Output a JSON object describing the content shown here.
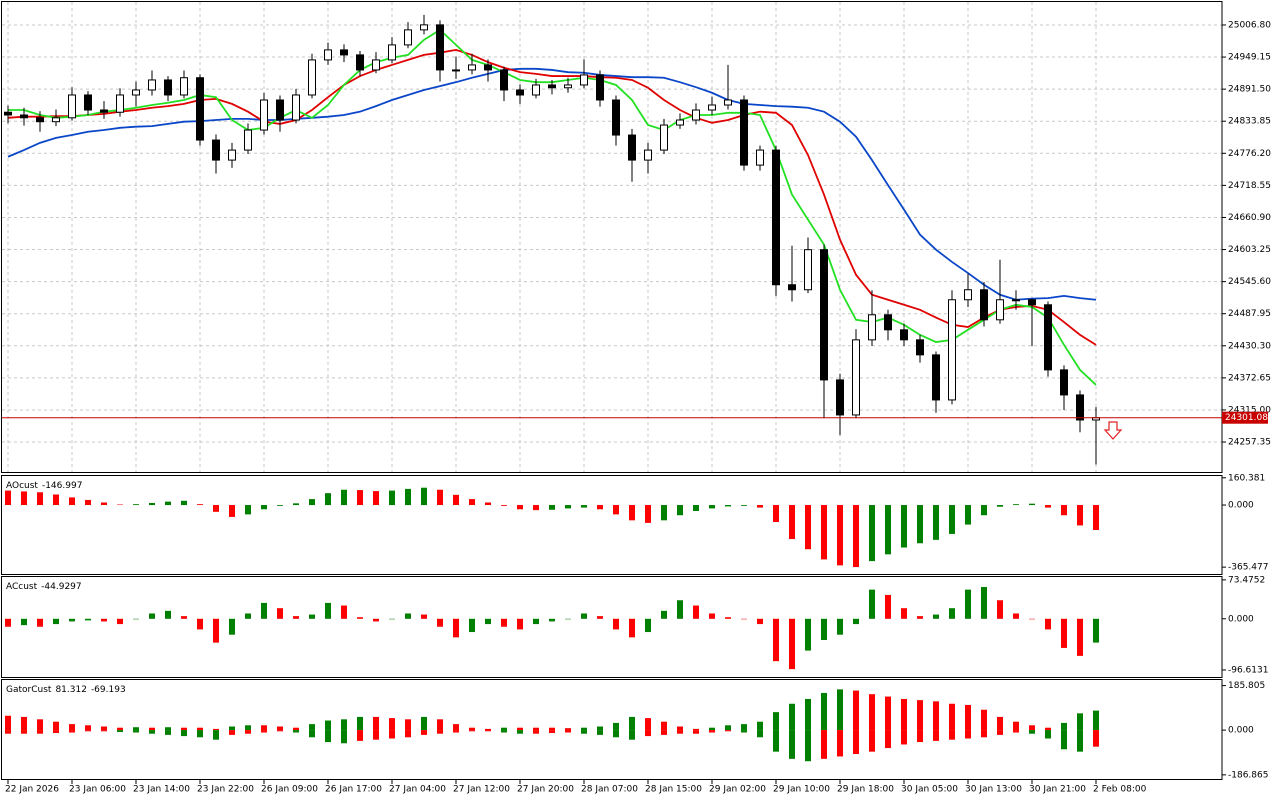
{
  "chart_data": [
    {
      "type": "candlestick",
      "categories": [
        "22 Jan 2026",
        null,
        null,
        null,
        "23 Jan 06:00",
        null,
        null,
        null,
        "23 Jan 14:00",
        null,
        null,
        null,
        "23 Jan 22:00",
        null,
        null,
        null,
        "26 Jan 09:00",
        null,
        null,
        null,
        "26 Jan 17:00",
        null,
        null,
        null,
        "27 Jan 04:00",
        null,
        null,
        null,
        "27 Jan 12:00",
        null,
        null,
        null,
        "27 Jan 20:00",
        null,
        null,
        null,
        "28 Jan 07:00",
        null,
        null,
        null,
        "28 Jan 15:00",
        null,
        null,
        null,
        "29 Jan 02:00",
        null,
        null,
        null,
        "29 Jan 10:00",
        null,
        null,
        null,
        "29 Jan 18:00",
        null,
        null,
        null,
        "30 Jan 05:00",
        null,
        null,
        null,
        "30 Jan 13:00",
        null,
        null,
        null,
        "30 Jan 21:00",
        null,
        null,
        null,
        "2 Feb 08:00"
      ],
      "open": [
        24850,
        24845,
        24840,
        24833,
        24840,
        24881,
        24854,
        24850,
        24881,
        24890,
        24908,
        24881,
        24912,
        24800,
        24764,
        24782,
        24818,
        24872,
        24836,
        24881,
        24944,
        24962,
        24953,
        24926,
        24944,
        24971,
        24998,
        25007,
        24926,
        24926,
        24935,
        24926,
        24890,
        24881,
        24899,
        24894,
        24899,
        24917,
        24872,
        24809,
        24764,
        24782,
        24827,
        24836,
        24854,
        24863,
        24872,
        24755,
        24782,
        24540,
        24531,
        24603,
        24369,
        24306,
        24441,
        24486,
        24459,
        24441,
        24414,
        24333,
        24513,
        24531,
        24477,
        24513,
        24513,
        24504,
        24387,
        24342,
        24297
      ],
      "high": [
        24862,
        24858,
        24852,
        24855,
        24895,
        24888,
        24870,
        24893,
        24905,
        24925,
        24915,
        24925,
        24918,
        24810,
        24795,
        24830,
        24885,
        24880,
        24892,
        24955,
        24975,
        24972,
        24960,
        24958,
        24985,
        25012,
        25025,
        25015,
        24950,
        24955,
        24945,
        24932,
        24900,
        24910,
        24908,
        24912,
        24945,
        24925,
        24880,
        24820,
        24795,
        24838,
        24848,
        24866,
        24878,
        24935,
        24880,
        24790,
        24790,
        24610,
        24625,
        24612,
        24380,
        24460,
        24530,
        24495,
        24470,
        24450,
        24420,
        24530,
        24560,
        24545,
        24585,
        24530,
        24515,
        24510,
        24395,
        24350,
        24320
      ],
      "low": [
        24830,
        24826,
        24815,
        24825,
        24835,
        24845,
        24838,
        24842,
        24860,
        24880,
        24870,
        24875,
        24790,
        24740,
        24750,
        24775,
        24810,
        24815,
        24830,
        24875,
        24935,
        24940,
        24915,
        24920,
        24938,
        24965,
        24990,
        24905,
        24910,
        24918,
        24905,
        24870,
        24865,
        24875,
        24882,
        24885,
        24893,
        24860,
        24790,
        24725,
        24740,
        24775,
        24820,
        24828,
        24845,
        24855,
        24745,
        24745,
        24520,
        24510,
        24525,
        24300,
        24270,
        24300,
        24430,
        24440,
        24430,
        24400,
        24310,
        24325,
        24500,
        24465,
        24470,
        24495,
        24430,
        24375,
        24315,
        24275,
        24217
      ],
      "close": [
        24845,
        24840,
        24833,
        24840,
        24881,
        24854,
        24850,
        24881,
        24890,
        24908,
        24881,
        24912,
        24800,
        24764,
        24782,
        24818,
        24872,
        24836,
        24881,
        24944,
        24962,
        24953,
        24926,
        24944,
        24971,
        24998,
        25007,
        24926,
        24926,
        24935,
        24926,
        24890,
        24881,
        24899,
        24894,
        24899,
        24917,
        24872,
        24809,
        24764,
        24782,
        24827,
        24836,
        24854,
        24863,
        24872,
        24755,
        24782,
        24540,
        24531,
        24603,
        24369,
        24306,
        24441,
        24486,
        24459,
        24441,
        24414,
        24333,
        24513,
        24531,
        24477,
        24513,
        24513,
        24504,
        24387,
        24342,
        24297,
        24301.08
      ],
      "up_color": "#ffffff",
      "down_color": "#000000",
      "lines": [
        {
          "color": "#0a46c8",
          "values": [
            24770,
            24782,
            24795,
            24804,
            24809,
            24815,
            24818,
            24822,
            24824,
            24825,
            24829,
            24833,
            24834,
            24836,
            24838,
            24838,
            24836,
            24836,
            24838,
            24840,
            24842,
            24845,
            24851,
            24861,
            24872,
            24881,
            24890,
            24897,
            24904,
            24912,
            24919,
            24926,
            24928,
            24928,
            24926,
            24922,
            24921,
            24917,
            24915,
            24913,
            24913,
            24912,
            24904,
            24895,
            24885,
            24872,
            24865,
            24863,
            24861,
            24860,
            24858,
            24851,
            24833,
            24806,
            24764,
            24719,
            24675,
            24630,
            24603,
            24581,
            24561,
            24540,
            24522,
            24513,
            24515,
            24516,
            24520,
            24516,
            24513
          ]
        },
        {
          "color": "#e00000",
          "values": [
            24840,
            24842,
            24842,
            24843,
            24843,
            24845,
            24847,
            24851,
            24854,
            24858,
            24861,
            24865,
            24872,
            24874,
            24865,
            24851,
            24833,
            24829,
            24836,
            24854,
            24877,
            24899,
            24915,
            24926,
            24935,
            24944,
            24953,
            24957,
            24962,
            24953,
            24940,
            24930,
            24922,
            24919,
            24915,
            24915,
            24915,
            24913,
            24912,
            24908,
            24894,
            24872,
            24854,
            24840,
            24831,
            24836,
            24845,
            24851,
            24849,
            24827,
            24773,
            24702,
            24621,
            24558,
            24522,
            24513,
            24504,
            24495,
            24481,
            24468,
            24464,
            24481,
            24495,
            24500,
            24502,
            24495,
            24473,
            24450,
            24432
          ]
        },
        {
          "color": "#22e022",
          "values": [
            24854,
            24854,
            24845,
            24840,
            24842,
            24845,
            24851,
            24854,
            24858,
            24863,
            24867,
            24872,
            24881,
            24877,
            24836,
            24818,
            24822,
            24840,
            24854,
            24840,
            24863,
            24899,
            24926,
            24940,
            24948,
            24953,
            24980,
            24998,
            24971,
            24944,
            24935,
            24922,
            24908,
            24904,
            24904,
            24908,
            24912,
            24908,
            24899,
            24872,
            24827,
            24818,
            24836,
            24845,
            24845,
            24849,
            24849,
            24845,
            24782,
            24702,
            24657,
            24612,
            24531,
            24477,
            24473,
            24481,
            24468,
            24450,
            24437,
            24441,
            24459,
            24477,
            24495,
            24504,
            24500,
            24481,
            24432,
            24387,
            24360
          ]
        }
      ],
      "price_line": 24301.08,
      "price_color": "#c80000",
      "ylim": [
        24203.5,
        25042.7
      ],
      "yticks": [
        {
          "value": 25006.8,
          "label": "25006.80"
        },
        24949.15,
        {
          "value": 24891.5,
          "label": "24891.50"
        },
        24833.85,
        {
          "value": 24776.2,
          "label": "24776.20"
        },
        24718.55,
        {
          "value": 24660.9,
          "label": "24660.90"
        },
        24603.25,
        {
          "value": 24545.6,
          "label": "24545.60"
        },
        24487.95,
        {
          "value": 24430.3,
          "label": "24430.30"
        },
        24372.65,
        {
          "value": 24315,
          "label": "24315.00"
        },
        24257.35
      ],
      "grid": true
    },
    {
      "type": "bar",
      "name": "AOcust",
      "values": [
        85,
        80,
        75,
        62,
        45,
        30,
        15,
        3,
        5,
        12,
        20,
        25,
        5,
        -40,
        -70,
        -55,
        -25,
        -5,
        10,
        35,
        70,
        90,
        88,
        82,
        85,
        95,
        102,
        90,
        60,
        35,
        15,
        -5,
        -25,
        -30,
        -28,
        -20,
        -15,
        -25,
        -55,
        -90,
        -105,
        -90,
        -60,
        -35,
        -20,
        -8,
        -5,
        -15,
        -100,
        -200,
        -260,
        -320,
        -355,
        -365,
        -330,
        -290,
        -250,
        -225,
        -205,
        -170,
        -115,
        -60,
        -10,
        5,
        8,
        -15,
        -60,
        -120,
        -146.997
      ],
      "up_color": "#008000",
      "down_color": "#ff0000",
      "ylim": [
        -400,
        165
      ],
      "yticks": [
        160.381,
        {
          "value": 0,
          "label": "0.000"
        },
        -365.477
      ]
    },
    {
      "type": "bar",
      "name": "ACcust",
      "values": [
        -15,
        -12,
        -15,
        -10,
        -5,
        -3,
        -5,
        -10,
        0,
        10,
        15,
        5,
        -20,
        -45,
        -30,
        10,
        30,
        20,
        5,
        8,
        30,
        25,
        3,
        -5,
        0,
        10,
        8,
        -15,
        -35,
        -25,
        -10,
        -15,
        -20,
        -10,
        -5,
        0,
        10,
        5,
        -20,
        -35,
        -25,
        15,
        35,
        25,
        10,
        3,
        0,
        -10,
        -80,
        -95,
        -60,
        -40,
        -30,
        -10,
        55,
        45,
        20,
        5,
        8,
        20,
        55,
        60,
        35,
        10,
        0,
        -20,
        -55,
        -70,
        -44.9297
      ],
      "up_color": "#008000",
      "down_color": "#ff0000",
      "ylim": [
        -108,
        77
      ],
      "yticks": [
        73.4752,
        {
          "value": 0,
          "label": "0.000"
        },
        -96.6131
      ]
    },
    {
      "type": "gator",
      "name": "GatorCust",
      "upper": [
        60,
        55,
        45,
        35,
        25,
        20,
        15,
        10,
        12,
        10,
        12,
        10,
        10,
        5,
        15,
        20,
        20,
        15,
        10,
        25,
        40,
        45,
        55,
        55,
        50,
        45,
        55,
        45,
        25,
        10,
        5,
        10,
        10,
        10,
        10,
        8,
        10,
        15,
        30,
        55,
        50,
        35,
        15,
        5,
        10,
        20,
        25,
        35,
        75,
        110,
        130,
        155,
        170,
        165,
        150,
        140,
        130,
        125,
        120,
        110,
        105,
        85,
        55,
        35,
        20,
        10,
        30,
        70,
        81.312
      ],
      "lower": [
        -15,
        -15,
        -15,
        -12,
        -10,
        -5,
        -5,
        -8,
        -10,
        -15,
        -20,
        -25,
        -30,
        -40,
        -20,
        -15,
        -10,
        -5,
        -10,
        -30,
        -50,
        -55,
        -45,
        -40,
        -35,
        -30,
        -20,
        -15,
        -10,
        -5,
        -5,
        -10,
        -15,
        -15,
        -12,
        -10,
        -15,
        -20,
        -30,
        -40,
        -25,
        -20,
        -15,
        -15,
        -10,
        -5,
        -10,
        -30,
        -90,
        -120,
        -130,
        -120,
        -110,
        -100,
        -90,
        -75,
        -60,
        -50,
        -45,
        -40,
        -35,
        -30,
        -20,
        -10,
        -15,
        -35,
        -80,
        -90,
        -69.193
      ],
      "up_color": "#008000",
      "down_color": "#ff0000",
      "ylim": [
        -200,
        205
      ],
      "yticks": [
        185.805,
        {
          "value": 0,
          "label": "0.000"
        },
        -186.865
      ]
    }
  ]
}
